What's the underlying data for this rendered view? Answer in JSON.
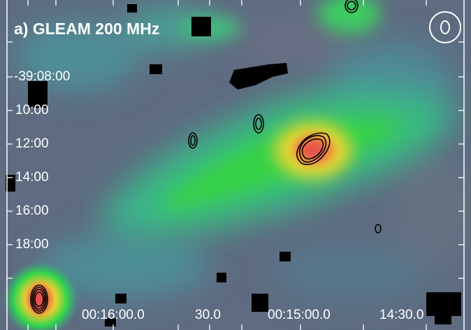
{
  "panel": {
    "title": "a) GLEAM 200 MHz"
  },
  "axes": {
    "dec_ticks": [
      "-39:08:00",
      "10:00",
      "12:00",
      "14:00",
      "16:00",
      "18:00"
    ],
    "ra_ticks": [
      "00:16:00.0",
      "30.0",
      "00:15:00.0",
      "14:30.0"
    ]
  },
  "beam_marker": {
    "icon": "beam-ellipse-icon"
  },
  "colors": {
    "background_low": "#5e6b80",
    "mid": "#3aa98f",
    "green": "#2fd54c",
    "yellow": "#e9d632",
    "peak": "#e8514b",
    "contour": "#000000",
    "text": "#ffffff"
  }
}
